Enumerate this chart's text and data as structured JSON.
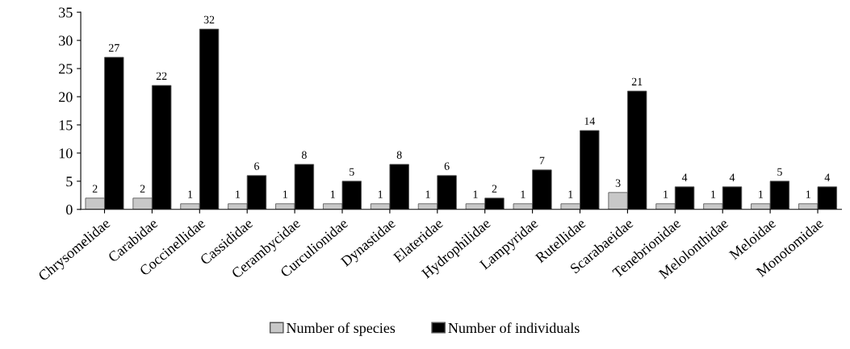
{
  "chart_data": {
    "type": "bar",
    "categories": [
      "Chrysomelidae",
      "Carabidae",
      "Coccinellidae",
      "Cassididae",
      "Cerambycidae",
      "Curculionidae",
      "Dynastidae",
      "Elateridae",
      "Hydrophilidae",
      "Lampyridae",
      "Rutellidae",
      "Scarabaeidae",
      "Tenebrionidae",
      "Melolonthidae",
      "Meloidae",
      "Monotomidae"
    ],
    "series": [
      {
        "name": "Number of species",
        "color": "#c8c8c8",
        "values": [
          2,
          2,
          1,
          1,
          1,
          1,
          1,
          1,
          1,
          1,
          1,
          3,
          1,
          1,
          1,
          1
        ]
      },
      {
        "name": "Number of individuals",
        "color": "#000000",
        "values": [
          27,
          22,
          32,
          6,
          8,
          5,
          8,
          6,
          2,
          7,
          14,
          21,
          4,
          4,
          5,
          4
        ]
      }
    ],
    "ylim": [
      0,
      35
    ],
    "yticks": [
      0,
      5,
      10,
      15,
      20,
      25,
      30,
      35
    ],
    "data_labels": true,
    "legend": "bottom",
    "grid": false
  }
}
